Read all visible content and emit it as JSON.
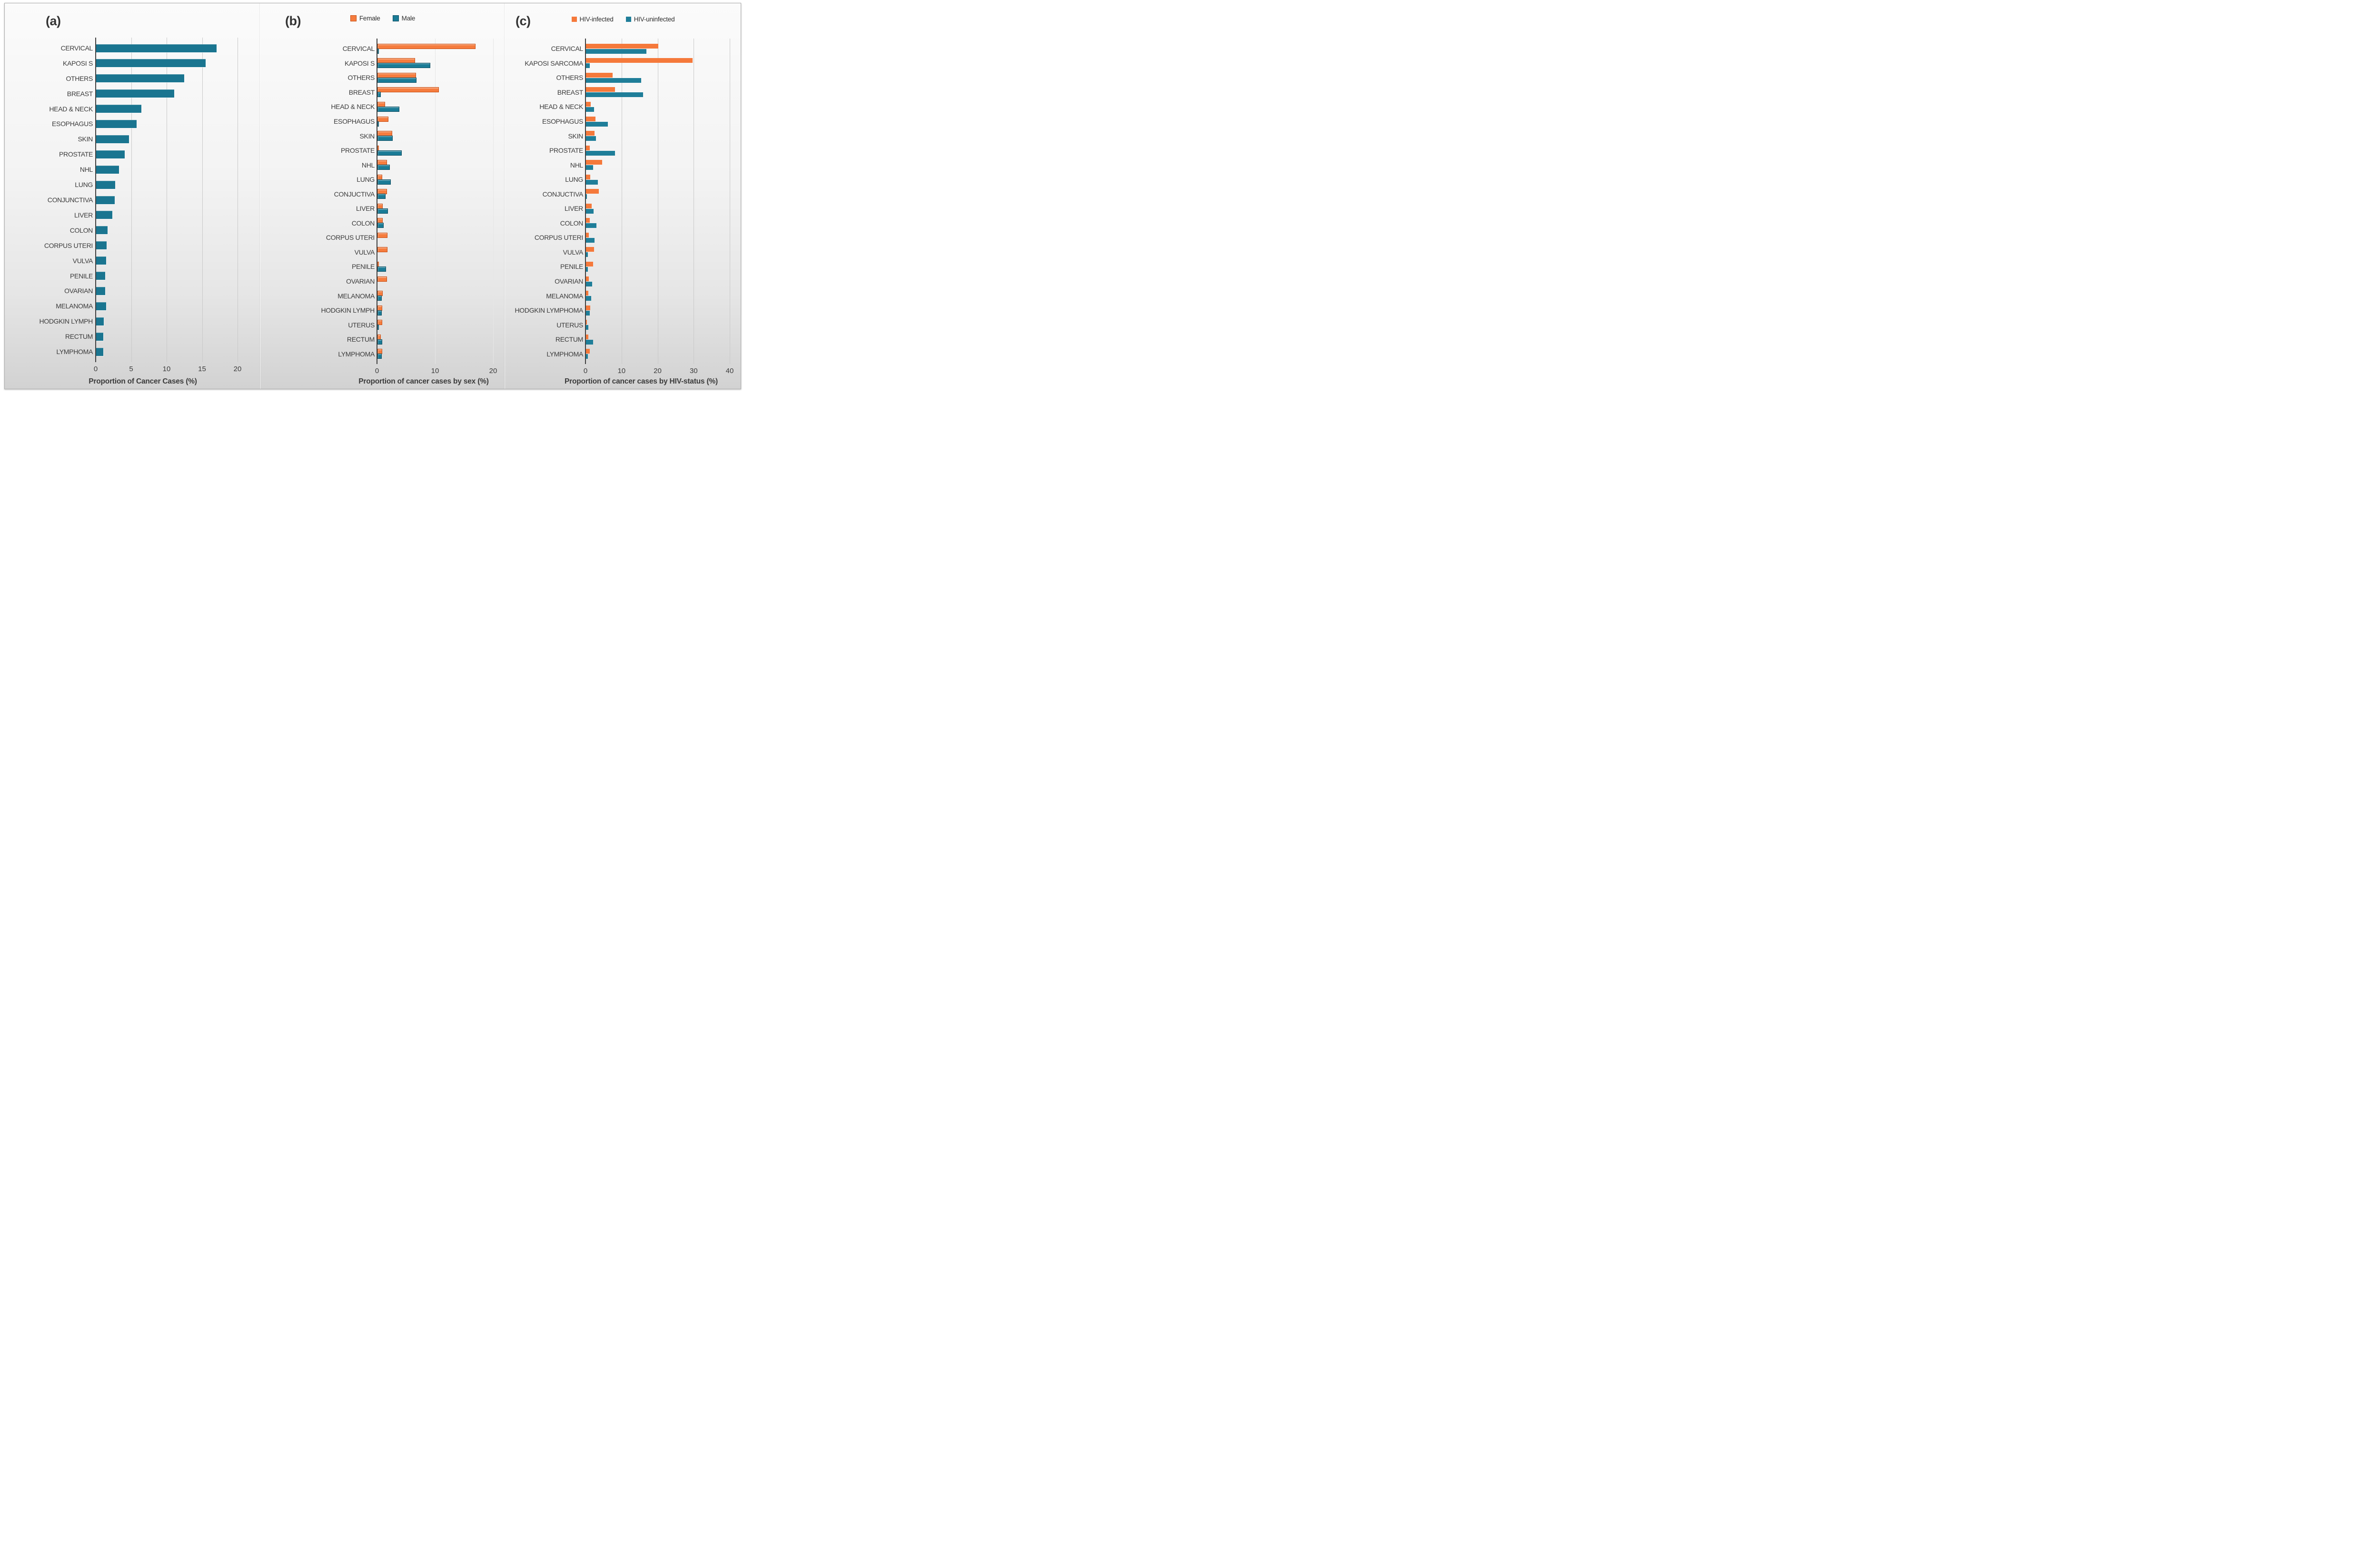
{
  "figure_type": "three-panel horizontal bar chart figure",
  "panels": [
    {
      "panel_label": "(a)"
    },
    {
      "panel_label": "(b)"
    },
    {
      "panel_label": "(c)"
    }
  ],
  "colors": {
    "teal_flat": "#1a7590",
    "teal_3d_fill": "#1a7b96",
    "teal_3d_border": "#0d4c60",
    "orange_3d_fill": "#f57c3e",
    "orange_3d_border": "#c64d12",
    "orange_flat": "#f5793b",
    "teal_flat_c": "#1f7e99",
    "axis_line": "#3f3f3f",
    "text": "#3a3a3a",
    "gridline": "#c9c9c9",
    "gridline_panel_b": "#e6e6e6",
    "background_top": "#fbfbfb",
    "background_bottom": "#d2d2d2"
  },
  "chart_data": [
    {
      "panel_label": "(a)",
      "type": "bar",
      "orientation": "horizontal",
      "title": "Proportion of Cancer Cases (%)",
      "xlim": [
        0,
        20
      ],
      "xticks": [
        0,
        5,
        10,
        15,
        20
      ],
      "grid": true,
      "legend": null,
      "bar_color": "#1a7590",
      "categories": [
        "CERVICAL",
        "KAPOSI S",
        "OTHERS",
        "BREAST",
        "HEAD & NECK",
        "ESOPHAGUS",
        "SKIN",
        "PROSTATE",
        "NHL",
        "LUNG",
        "CONJUNCTIVA",
        "LIVER",
        "COLON",
        "CORPUS UTERI",
        "VULVA",
        "PENILE",
        "OVARIAN",
        "MELANOMA",
        "HODGKIN LYMPH",
        "RECTUM",
        "LYMPHOMA"
      ],
      "values": [
        17.0,
        15.4,
        12.4,
        11.0,
        6.4,
        5.7,
        4.6,
        4.0,
        3.2,
        2.7,
        2.6,
        2.3,
        1.6,
        1.5,
        1.4,
        1.3,
        1.3,
        1.4,
        1.1,
        1.0,
        1.0
      ]
    },
    {
      "panel_label": "(b)",
      "type": "bar",
      "orientation": "horizontal",
      "title": "Proportion of cancer cases by sex (%)",
      "xlim": [
        0,
        20
      ],
      "xticks": [
        0,
        10,
        20
      ],
      "grid": true,
      "legend_position": "top-center",
      "categories": [
        "CERVICAL",
        "KAPOSI S",
        "OTHERS",
        "BREAST",
        "HEAD & NECK",
        "ESOPHAGUS",
        "SKIN",
        "PROSTATE",
        "NHL",
        "LUNG",
        "CONJUCTIVA",
        "LIVER",
        "COLON",
        "CORPUS UTERI",
        "VULVA",
        "PENILE",
        "OVARIAN",
        "MELANOMA",
        "HODGKIN LYMPH",
        "UTERUS",
        "RECTUM",
        "LYMPHOMA"
      ],
      "series": [
        {
          "name": "Female",
          "color": "#f57c3e",
          "border_color": "#c64d12",
          "values": [
            16.9,
            6.5,
            6.6,
            10.6,
            1.3,
            1.9,
            2.5,
            0.2,
            1.6,
            0.8,
            1.6,
            0.9,
            0.9,
            1.7,
            1.7,
            0.1,
            1.6,
            0.9,
            0.8,
            0.8,
            0.6,
            0.8
          ]
        },
        {
          "name": "Male",
          "color": "#1a7b96",
          "border_color": "#0d4c60",
          "values": [
            0.1,
            9.1,
            6.7,
            0.6,
            3.8,
            0.2,
            2.6,
            4.2,
            2.1,
            2.3,
            1.4,
            1.8,
            1.1,
            0,
            0,
            1.5,
            0,
            0.7,
            0.7,
            0.1,
            0.8,
            0.7
          ]
        }
      ]
    },
    {
      "panel_label": "(c)",
      "type": "bar",
      "orientation": "horizontal",
      "title": "Proportion of cancer cases by HIV-status (%)",
      "xlim": [
        0,
        40
      ],
      "xticks": [
        0,
        10,
        20,
        30,
        40
      ],
      "grid": true,
      "legend_position": "top-center",
      "categories": [
        "CERVICAL",
        "KAPOSI SARCOMA",
        "OTHERS",
        "BREAST",
        "HEAD & NECK",
        "ESOPHAGUS",
        "SKIN",
        "PROSTATE",
        "NHL",
        "LUNG",
        "CONJUCTIVA",
        "LIVER",
        "COLON",
        "CORPUS UTERI",
        "VULVA",
        "PENILE",
        "OVARIAN",
        "MELANOMA",
        "HODGKIN LYMPHOMA",
        "UTERUS",
        "RECTUM",
        "LYMPHOMA"
      ],
      "series": [
        {
          "name": "HIV-infected",
          "color": "#f5793b",
          "values": [
            20.1,
            29.6,
            7.4,
            8.1,
            1.3,
            2.6,
            2.4,
            1.0,
            4.5,
            1.2,
            3.6,
            1.6,
            1.0,
            0.8,
            2.2,
            2.0,
            0.8,
            0.6,
            1.2,
            0.3,
            0.6,
            1.0
          ]
        },
        {
          "name": "HIV-uninfected",
          "color": "#1f7e99",
          "values": [
            16.8,
            1.1,
            15.3,
            15.9,
            2.3,
            6.0,
            2.7,
            8.0,
            2.0,
            3.3,
            0.3,
            2.1,
            2.9,
            2.4,
            0.5,
            0.5,
            1.7,
            1.5,
            1.0,
            0.6,
            2.0,
            0.5
          ]
        }
      ]
    }
  ]
}
